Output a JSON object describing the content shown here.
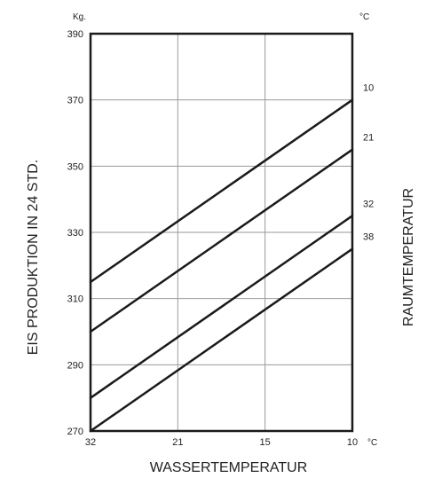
{
  "chart_data": {
    "type": "line",
    "title": "",
    "xlabel": "WASSERTEMPERATUR",
    "ylabel": "EIS PRODUKTION IN 24 STD.",
    "right_label": "RAUMTEMPERATUR",
    "y_unit": "Kg.",
    "x_unit": "°C",
    "right_unit": "°C",
    "x_ticks": [
      "32",
      "21",
      "15",
      "10"
    ],
    "ylim": [
      270,
      390
    ],
    "y_ticks": [
      270,
      290,
      310,
      330,
      350,
      370,
      390
    ],
    "grid": true,
    "series": [
      {
        "name": "10",
        "values": [
          315,
          370
        ]
      },
      {
        "name": "21",
        "values": [
          300,
          355
        ]
      },
      {
        "name": "32",
        "values": [
          280,
          335
        ]
      },
      {
        "name": "38",
        "values": [
          270,
          325
        ]
      }
    ],
    "colors": {
      "line": "#1a1a1a",
      "grid": "#9a9a9a",
      "text": "#222222"
    }
  }
}
